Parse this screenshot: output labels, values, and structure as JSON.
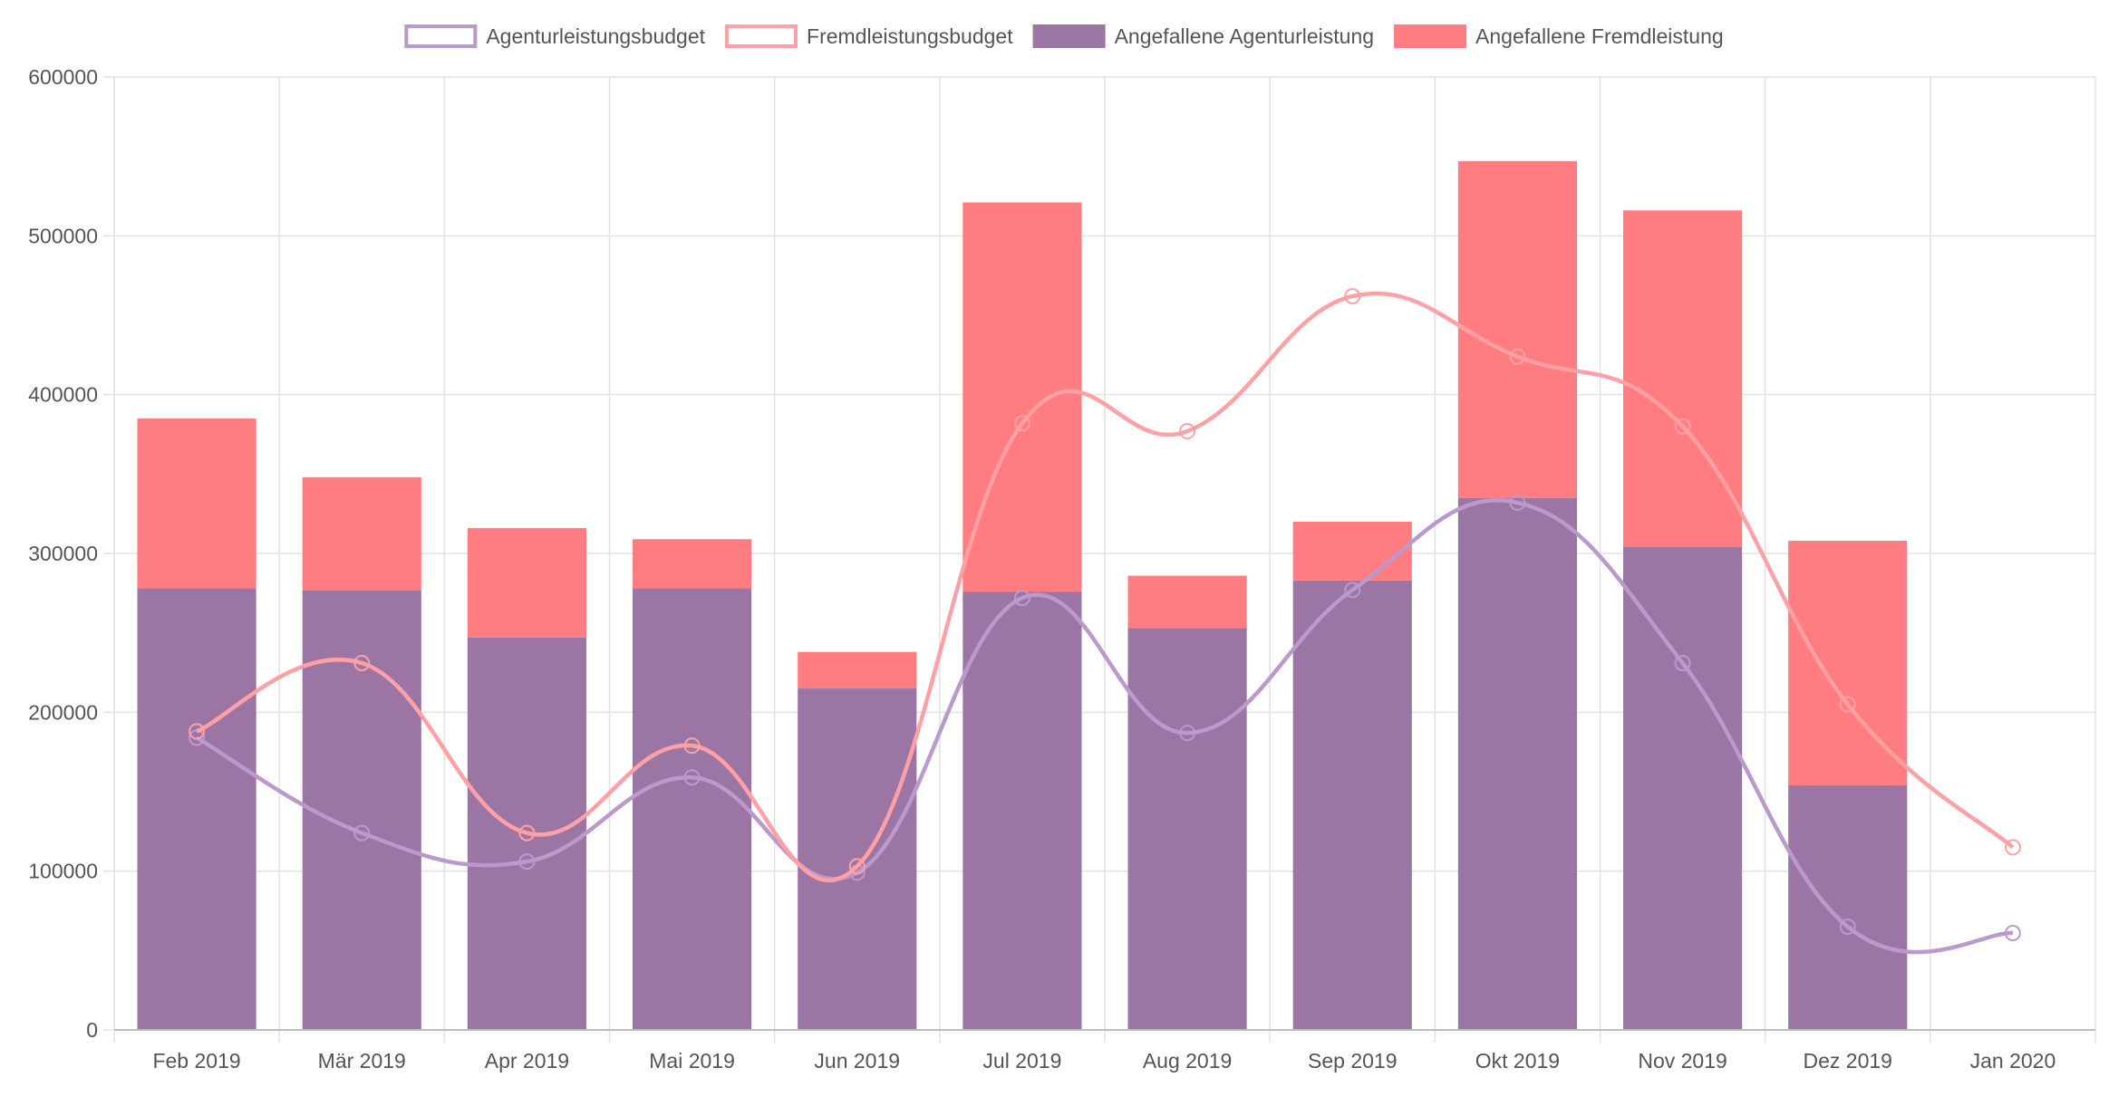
{
  "chart_data": {
    "type": "bar",
    "title": "",
    "xlabel": "",
    "ylabel": "",
    "ylim": [
      0,
      600000
    ],
    "y_ticks": [
      0,
      100000,
      200000,
      300000,
      400000,
      500000,
      600000
    ],
    "grid": true,
    "legend_placement": "top",
    "stacked": true,
    "categories": [
      "Feb 2019",
      "Mär 2019",
      "Apr 2019",
      "Mai 2019",
      "Jun 2019",
      "Jul 2019",
      "Aug 2019",
      "Sep 2019",
      "Okt 2019",
      "Nov 2019",
      "Dez 2019",
      "Jan 2020"
    ],
    "bar_series": [
      {
        "name": "Angefallene Agenturleistung",
        "color": "#9b76a5",
        "values": [
          278000,
          277000,
          247000,
          278000,
          215000,
          276000,
          253000,
          283000,
          335000,
          304000,
          154000,
          0
        ]
      },
      {
        "name": "Angefallene Fremdleistung",
        "color": "#ff7c80",
        "values": [
          107000,
          71000,
          69000,
          31000,
          23000,
          245000,
          33000,
          37000,
          212000,
          212000,
          154000,
          0
        ]
      }
    ],
    "line_series": [
      {
        "name": "Agenturleistungsbudget",
        "color": "#bb99cc",
        "values": [
          184000,
          124000,
          106000,
          159000,
          99000,
          272000,
          187000,
          277000,
          332000,
          231000,
          65000,
          61000
        ]
      },
      {
        "name": "Fremdleistungsbudget",
        "color": "#ffa0a5",
        "values": [
          188000,
          231000,
          124000,
          179000,
          103000,
          382000,
          377000,
          462000,
          424000,
          380000,
          205000,
          115000
        ]
      }
    ],
    "legend": [
      {
        "label": "Agenturleistungsbudget",
        "style": "outline",
        "color": "#bb99cc"
      },
      {
        "label": "Fremdleistungsbudget",
        "style": "outline",
        "color": "#ffa0a5"
      },
      {
        "label": "Angefallene Agenturleistung",
        "style": "fill",
        "color": "#9b76a5"
      },
      {
        "label": "Angefallene Fremdleistung",
        "style": "fill",
        "color": "#ff7c80"
      }
    ]
  }
}
